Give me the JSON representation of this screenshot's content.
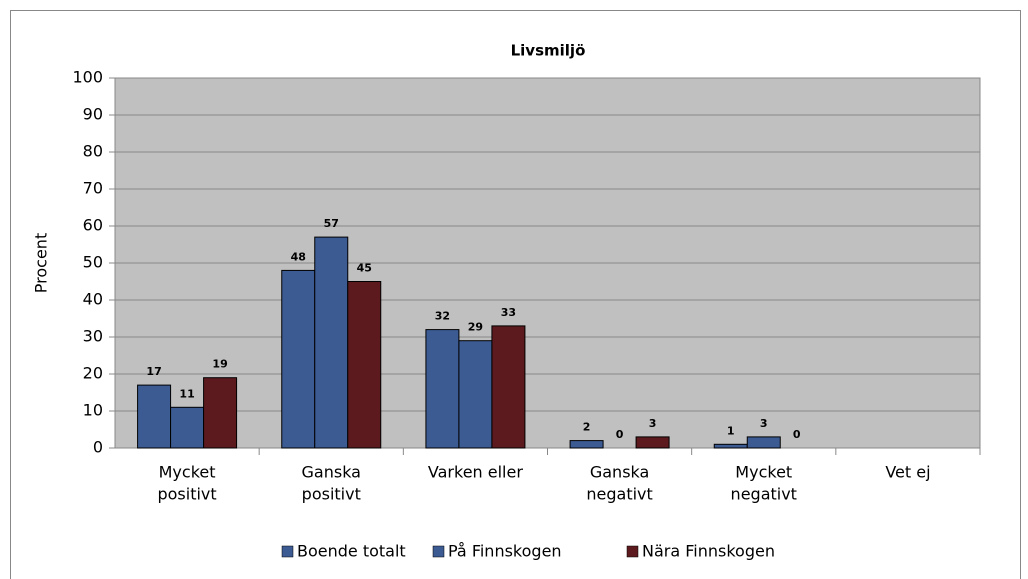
{
  "chart_data": {
    "type": "bar",
    "title": "Livsmiljö",
    "y_label": "Procent",
    "categories": [
      [
        "Mycket",
        "positivt"
      ],
      [
        "Ganska",
        "positivt"
      ],
      [
        "Varken eller"
      ],
      [
        "Ganska",
        "negativt"
      ],
      [
        "Mycket",
        "negativt"
      ],
      [
        "Vet ej"
      ]
    ],
    "series": [
      {
        "name": "Boende totalt",
        "color": "#3c5b93",
        "values": [
          17,
          48,
          32,
          2,
          1,
          null
        ]
      },
      {
        "name": "På Finnskogen",
        "color": "#3c5b93",
        "values": [
          11,
          57,
          29,
          0,
          3,
          null
        ]
      },
      {
        "name": "Nära Finnskogen",
        "color": "#5c1a1f",
        "values": [
          19,
          45,
          33,
          3,
          0,
          null
        ]
      }
    ],
    "ylim": [
      0,
      100
    ],
    "yticks": [
      0,
      10,
      20,
      30,
      40,
      50,
      60,
      70,
      80,
      90,
      100
    ],
    "grid": true,
    "legend": "bottom"
  }
}
